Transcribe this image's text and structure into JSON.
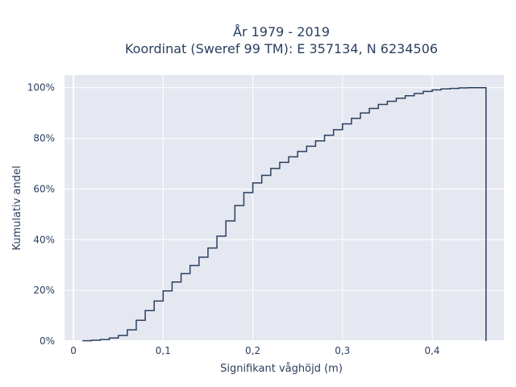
{
  "chart_data": {
    "type": "line",
    "title_line1": "År 1979 - 2019",
    "title_line2": "Koordinat (Sweref 99 TM): E 357134, N 6234506",
    "xlabel": "Signifikant våghöjd (m)",
    "ylabel": "Kumulativ andel",
    "xlim": [
      -0.01,
      0.48
    ],
    "ylim": [
      0,
      1.05
    ],
    "x_ticks": [
      {
        "value": 0,
        "label": "0"
      },
      {
        "value": 0.1,
        "label": "0,1"
      },
      {
        "value": 0.2,
        "label": "0,2"
      },
      {
        "value": 0.3,
        "label": "0,3"
      },
      {
        "value": 0.4,
        "label": "0,4"
      }
    ],
    "y_ticks": [
      {
        "value": 0,
        "label": "0%"
      },
      {
        "value": 0.2,
        "label": "20%"
      },
      {
        "value": 0.4,
        "label": "40%"
      },
      {
        "value": 0.6,
        "label": "60%"
      },
      {
        "value": 0.8,
        "label": "80%"
      },
      {
        "value": 1.0,
        "label": "100%"
      }
    ],
    "grid": true,
    "line_color": "#2a3f5f",
    "plot_bg": "#e5e8f0",
    "step": true,
    "x": [
      0.01,
      0.02,
      0.03,
      0.04,
      0.05,
      0.06,
      0.07,
      0.08,
      0.09,
      0.1,
      0.11,
      0.12,
      0.13,
      0.14,
      0.15,
      0.16,
      0.17,
      0.18,
      0.19,
      0.2,
      0.21,
      0.22,
      0.23,
      0.24,
      0.25,
      0.26,
      0.27,
      0.28,
      0.29,
      0.3,
      0.31,
      0.32,
      0.33,
      0.34,
      0.35,
      0.36,
      0.37,
      0.38,
      0.39,
      0.4,
      0.41,
      0.42,
      0.43,
      0.44,
      0.45,
      0.46
    ],
    "y": [
      0.001,
      0.003,
      0.006,
      0.012,
      0.022,
      0.044,
      0.082,
      0.12,
      0.158,
      0.198,
      0.233,
      0.266,
      0.298,
      0.331,
      0.367,
      0.414,
      0.474,
      0.535,
      0.586,
      0.624,
      0.654,
      0.681,
      0.705,
      0.727,
      0.748,
      0.769,
      0.79,
      0.812,
      0.834,
      0.857,
      0.879,
      0.9,
      0.918,
      0.934,
      0.946,
      0.958,
      0.968,
      0.977,
      0.985,
      0.991,
      0.995,
      0.997,
      0.999,
      1.0,
      1.0,
      0.0
    ]
  }
}
